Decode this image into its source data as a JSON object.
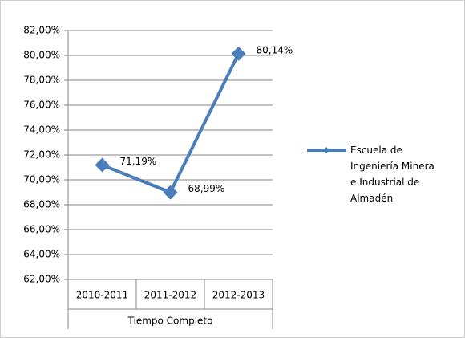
{
  "chart_data": {
    "type": "line",
    "categories": [
      "2010-2011",
      "2011-2012",
      "2012-2013"
    ],
    "xlabel": "Tiempo Completo",
    "series": [
      {
        "name": "Escuela de Ingeniería Minera e Industrial de Almadén",
        "color": "#4a7ebb",
        "values": [
          71.19,
          68.99,
          80.14
        ],
        "value_labels": [
          "71,19%",
          "68,99%",
          "80,14%"
        ]
      }
    ],
    "ylim": [
      62,
      82
    ],
    "yticks": [
      {
        "value": 62,
        "label": "62,00%"
      },
      {
        "value": 64,
        "label": "64,00%"
      },
      {
        "value": 66,
        "label": "66,00%"
      },
      {
        "value": 68,
        "label": "68,00%"
      },
      {
        "value": 70,
        "label": "70,00%"
      },
      {
        "value": 72,
        "label": "72,00%"
      },
      {
        "value": 74,
        "label": "74,00%"
      },
      {
        "value": 76,
        "label": "76,00%"
      },
      {
        "value": 78,
        "label": "78,00%"
      },
      {
        "value": 80,
        "label": "80,00%"
      },
      {
        "value": 82,
        "label": "82,00%"
      }
    ],
    "grid": true,
    "legend": "right"
  }
}
